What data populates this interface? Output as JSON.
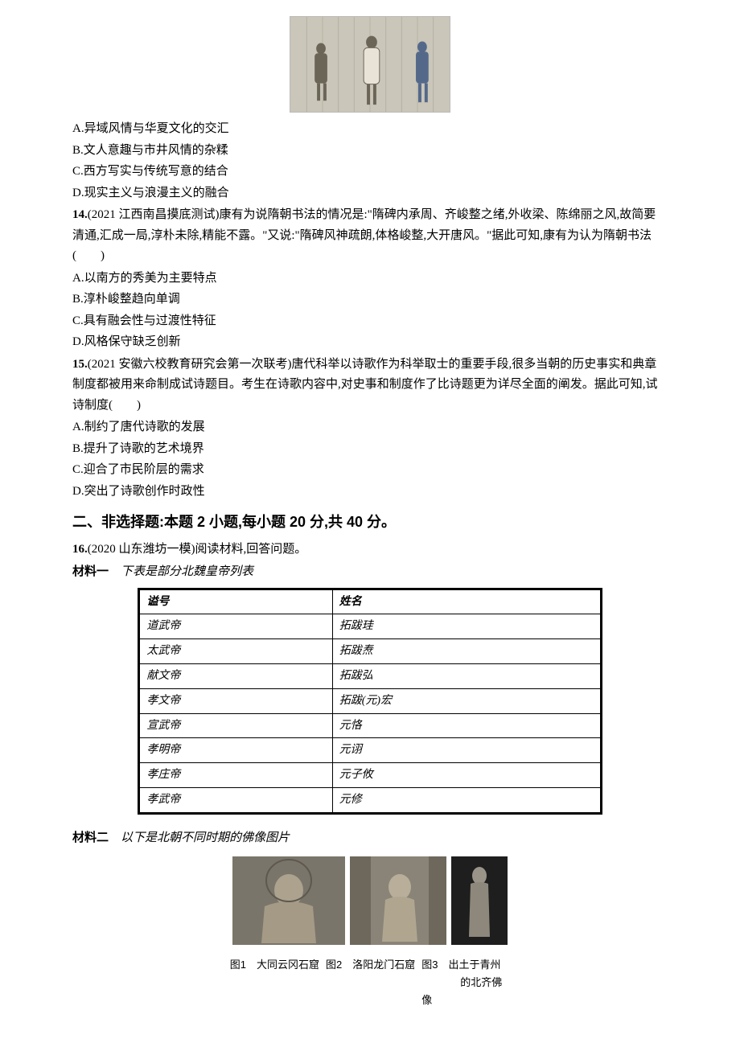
{
  "topImage": {
    "alt": "painting-three-figures"
  },
  "q13": {
    "options": {
      "A": "A.异域风情与华夏文化的交汇",
      "B": "B.文人意趣与市井风情的杂糅",
      "C": "C.西方写实与传统写意的结合",
      "D": "D.现实主义与浪漫主义的融合"
    }
  },
  "q14": {
    "stem_a": "14.",
    "stem_b": "(2021 江西南昌摸底测试)康有为说隋朝书法的情况是:\"隋碑内承周、齐峻整之绪,外收梁、陈绵丽之风,故简要清通,汇成一局,淳朴未除,精能不露。\"又说:\"隋碑风神疏朗,体格峻整,大开唐风。\"据此可知,康有为认为隋朝书法(　　)",
    "options": {
      "A": "A.以南方的秀美为主要特点",
      "B": "B.淳朴峻整趋向单调",
      "C": "C.具有融会性与过渡性特征",
      "D": "D.风格保守缺乏创新"
    }
  },
  "q15": {
    "stem_a": "15.",
    "stem_b": "(2021 安徽六校教育研究会第一次联考)唐代科举以诗歌作为科举取士的重要手段,很多当朝的历史事实和典章制度都被用来命制成试诗题目。考生在诗歌内容中,对史事和制度作了比诗题更为详尽全面的阐发。据此可知,试诗制度(　　)",
    "options": {
      "A": "A.制约了唐代诗歌的发展",
      "B": "B.提升了诗歌的艺术境界",
      "C": "C.迎合了市民阶层的需求",
      "D": "D.突出了诗歌创作时政性"
    }
  },
  "section2": "二、非选择题:本题 2 小题,每小题 20 分,共 40 分。",
  "q16": {
    "stem_a": "16.",
    "stem_b": "(2020 山东潍坊一模)阅读材料,回答问题。",
    "material1_label": "材料一",
    "material1_desc": "下表是部分北魏皇帝列表",
    "table": {
      "headers": [
        "谥号",
        "姓名"
      ],
      "rows": [
        [
          "道武帝",
          "拓跋珪"
        ],
        [
          "太武帝",
          "拓跋焘"
        ],
        [
          "献文帝",
          "拓跋弘"
        ],
        [
          "孝文帝",
          "拓跋(元)宏"
        ],
        [
          "宣武帝",
          "元恪"
        ],
        [
          "孝明帝",
          "元诩"
        ],
        [
          "孝庄帝",
          "元子攸"
        ],
        [
          "孝武帝",
          "元修"
        ]
      ]
    },
    "material2_label": "材料二",
    "material2_desc": "以下是北朝不同时期的佛像图片",
    "captions": {
      "c1": "图1　大同云冈石窟",
      "c2": "图2　洛阳龙门石窟",
      "c3a": "图3　出土于青州",
      "c3b": "的北齐佛像"
    }
  }
}
